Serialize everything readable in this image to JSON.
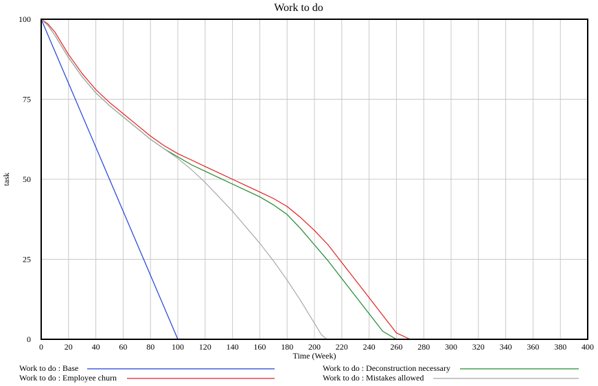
{
  "chart_data": {
    "type": "line",
    "title": "Work to do",
    "xlabel": "Time (Week)",
    "ylabel": "task",
    "xlim": [
      0,
      400
    ],
    "ylim": [
      0,
      100
    ],
    "x_ticks": [
      "0",
      "20",
      "40",
      "60",
      "80",
      "100",
      "120",
      "140",
      "160",
      "180",
      "200",
      "220",
      "240",
      "260",
      "280",
      "300",
      "320",
      "340",
      "360",
      "380",
      "400"
    ],
    "y_ticks": [
      "0",
      "25",
      "50",
      "75",
      "100"
    ],
    "grid": true,
    "legend_position": "bottom",
    "series": [
      {
        "name": "Work to do : Base",
        "color": "#1f3fd6",
        "x": [
          0,
          100,
          400
        ],
        "y": [
          100,
          0,
          0
        ]
      },
      {
        "name": "Work to do : Deconstruction necessary",
        "color": "#1e8a2e",
        "x": [
          0,
          5,
          10,
          20,
          30,
          40,
          50,
          60,
          70,
          80,
          90,
          100,
          110,
          120,
          130,
          140,
          150,
          160,
          170,
          180,
          190,
          200,
          210,
          220,
          230,
          240,
          250,
          260,
          265,
          268,
          280,
          400
        ],
        "y": [
          100,
          98,
          95,
          88,
          82,
          77,
          73,
          69.5,
          66,
          62.5,
          59.5,
          57,
          54.5,
          52.5,
          50.5,
          48.5,
          46.5,
          44.5,
          42,
          39,
          34.5,
          29.5,
          24.5,
          19,
          13.5,
          8,
          2.5,
          0,
          0,
          0,
          0,
          0
        ]
      },
      {
        "name": "Work to do : Employee churn",
        "color": "#e02020",
        "x": [
          0,
          5,
          10,
          20,
          30,
          40,
          50,
          60,
          70,
          80,
          90,
          100,
          110,
          120,
          130,
          140,
          150,
          160,
          170,
          180,
          190,
          200,
          210,
          220,
          230,
          240,
          250,
          260,
          270,
          272,
          280,
          400
        ],
        "y": [
          100,
          98.5,
          96,
          89,
          83,
          78,
          74,
          70.5,
          67,
          63.5,
          60.5,
          58,
          56,
          54,
          52,
          50,
          48,
          46,
          44,
          41.5,
          38,
          34,
          29.5,
          24,
          18.5,
          13,
          7.5,
          2,
          0,
          0,
          0,
          0
        ]
      },
      {
        "name": "Work to do : Mistakes allowed",
        "color": "#a8a8a8",
        "x": [
          0,
          5,
          10,
          20,
          30,
          40,
          50,
          60,
          70,
          80,
          90,
          100,
          110,
          120,
          130,
          140,
          150,
          160,
          170,
          180,
          190,
          200,
          205,
          209,
          220,
          400
        ],
        "y": [
          100,
          98,
          95,
          88,
          82,
          77,
          73,
          69.5,
          66,
          62.5,
          59.5,
          56.5,
          53,
          49,
          44.5,
          40,
          35,
          30,
          24.5,
          18.5,
          12,
          5,
          1.5,
          0,
          0,
          0
        ]
      }
    ]
  }
}
